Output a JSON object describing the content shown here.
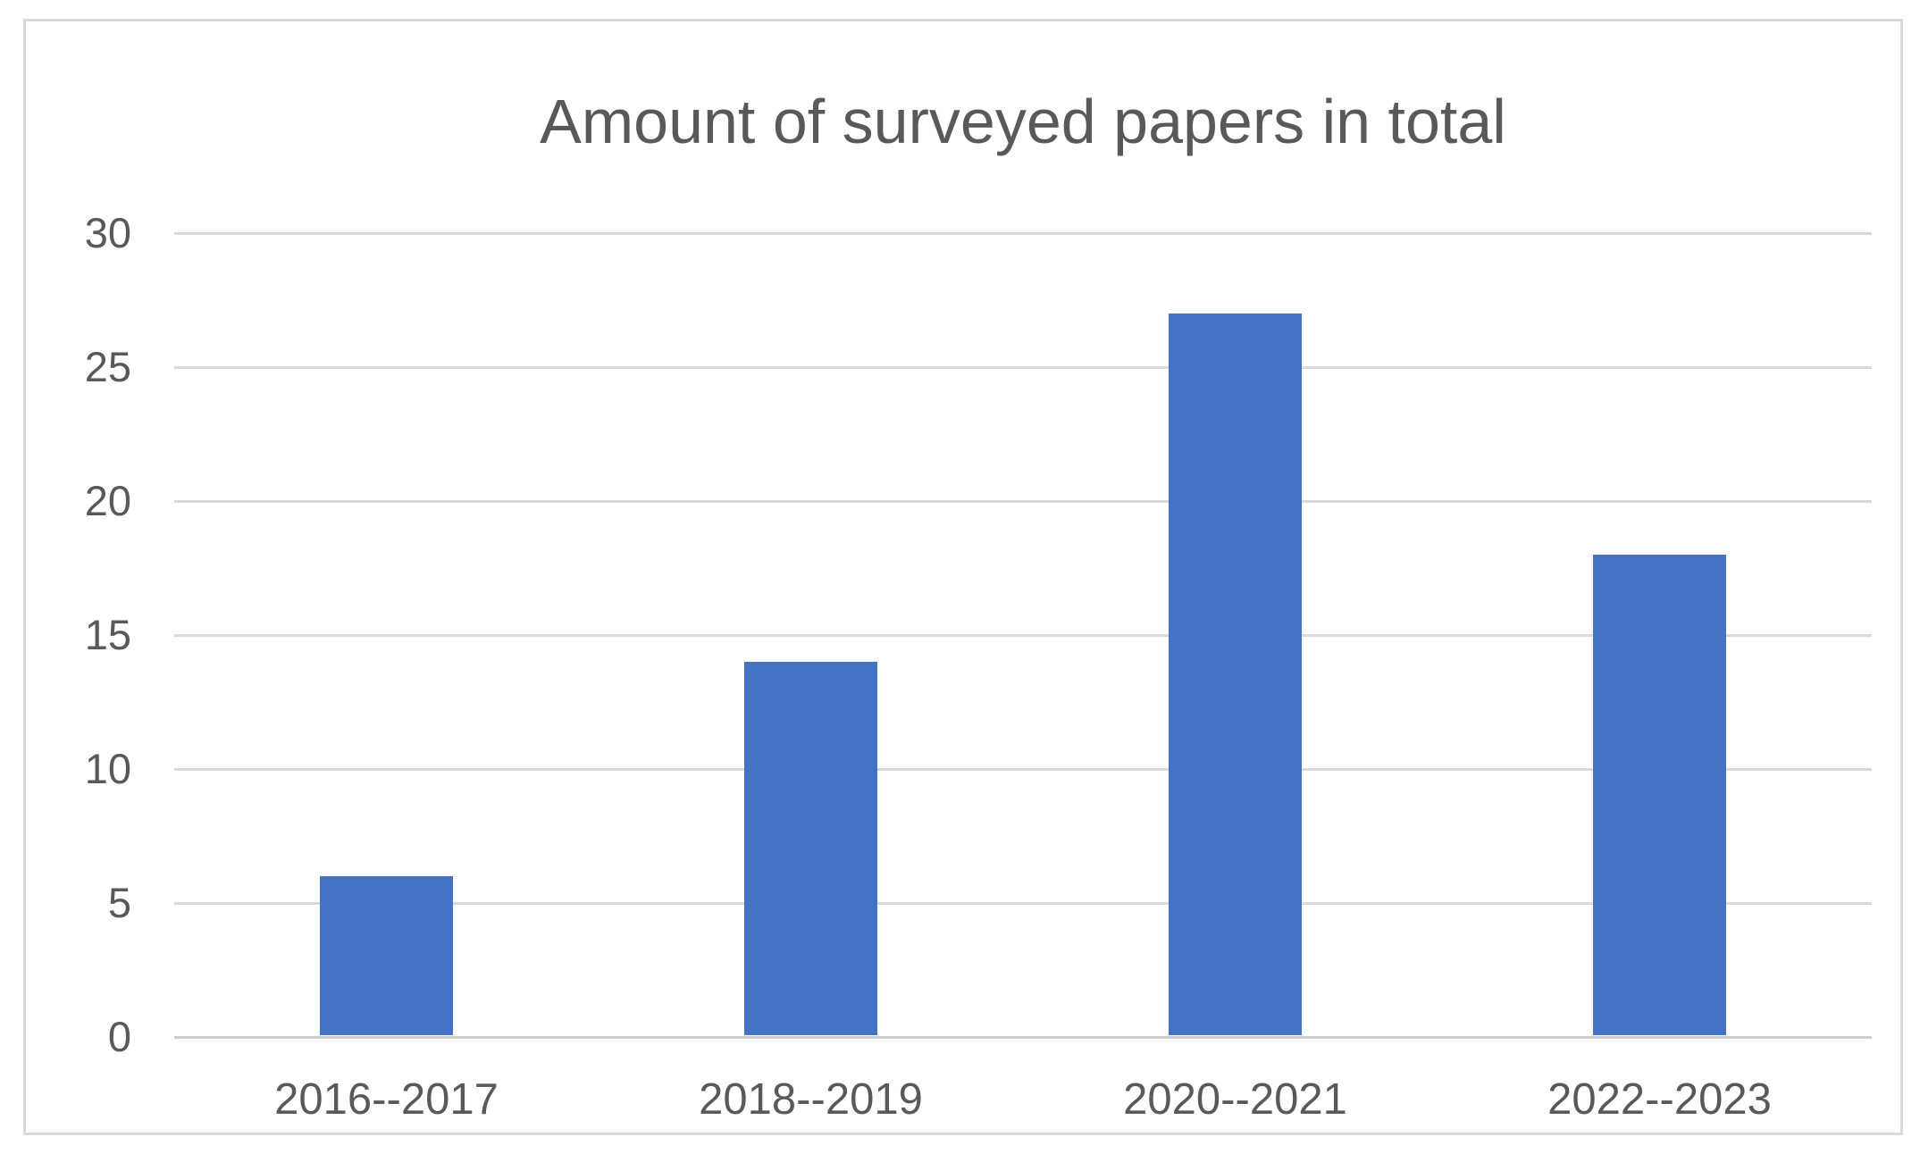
{
  "chart_data": {
    "type": "bar",
    "title": "Amount of surveyed papers in total",
    "categories": [
      "2016--2017",
      "2018--2019",
      "2020--2021",
      "2022--2023"
    ],
    "values": [
      6,
      14,
      27,
      18
    ],
    "xlabel": "",
    "ylabel": "",
    "ylim": [
      0,
      30
    ],
    "y_ticks": [
      0,
      5,
      10,
      15,
      20,
      25,
      30
    ],
    "grid": "horizontal",
    "legend": "none",
    "bar_color": "#4472C4"
  },
  "colors": {
    "bar": "#4472C4",
    "gridline": "#D9D9D9",
    "axis_line": "#CDCDCD",
    "text": "#595959",
    "frame_border": "#D9D9D9",
    "background": "#FFFFFF"
  }
}
